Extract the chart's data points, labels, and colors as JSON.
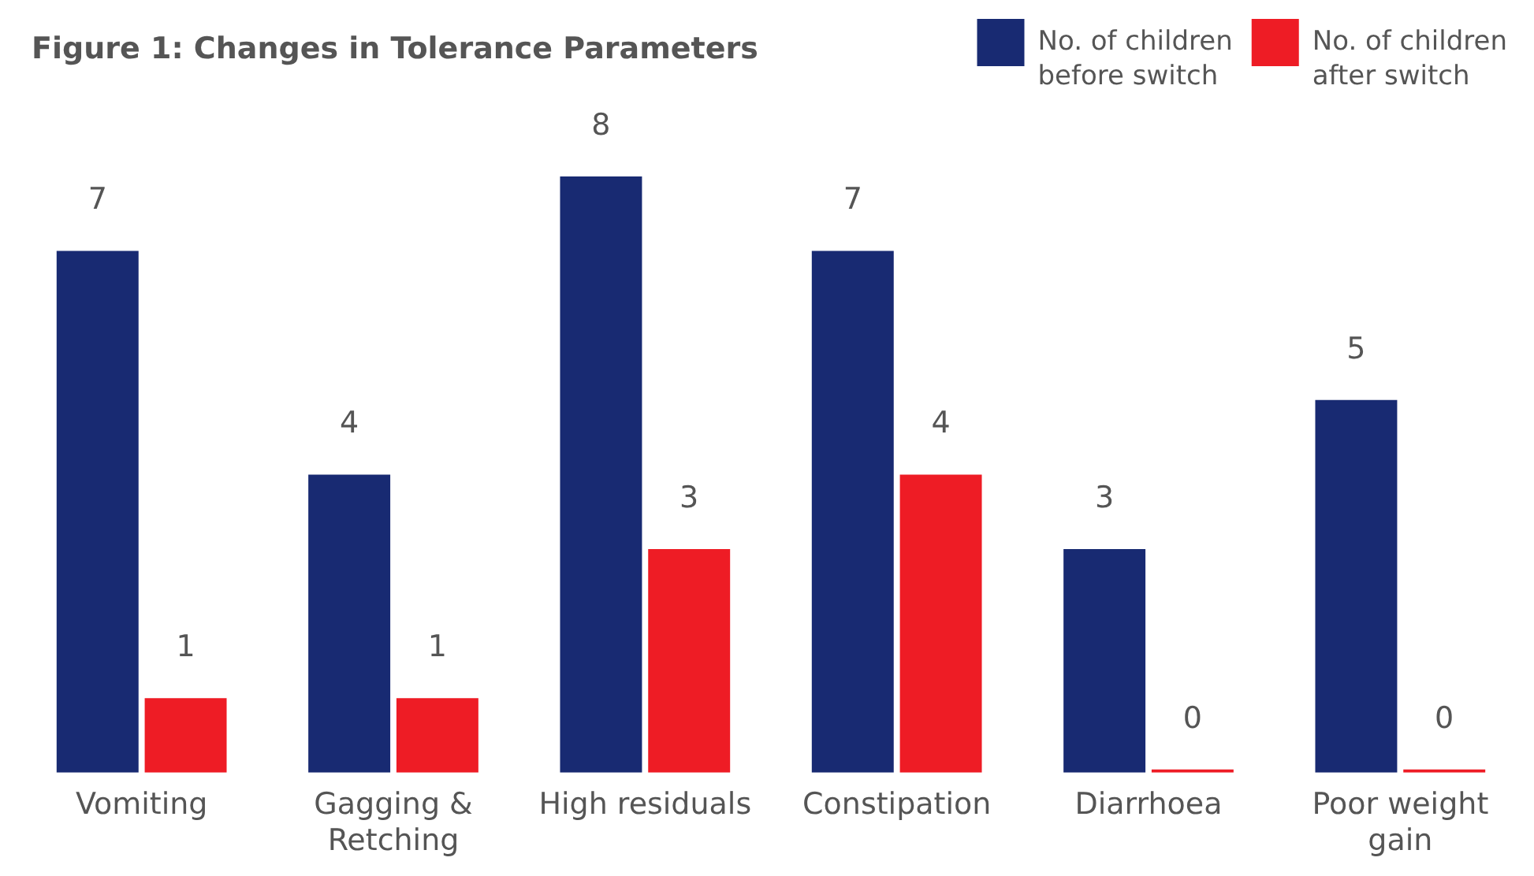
{
  "chart_data": {
    "type": "bar",
    "title": "Figure 1: Changes in Tolerance Parameters",
    "categories": [
      "Vomiting",
      "Gagging & Retching",
      "High residuals",
      "Constipation",
      "Diarrhoea",
      "Poor weight gain"
    ],
    "series": [
      {
        "name": "No. of children before switch",
        "color": "#182a72",
        "values": [
          7,
          4,
          8,
          7,
          3,
          5
        ]
      },
      {
        "name": "No. of children after switch",
        "color": "#ee1c25",
        "values": [
          1,
          1,
          3,
          4,
          0,
          0
        ]
      }
    ],
    "data_labels": true,
    "grid": false,
    "legend": "top right"
  }
}
